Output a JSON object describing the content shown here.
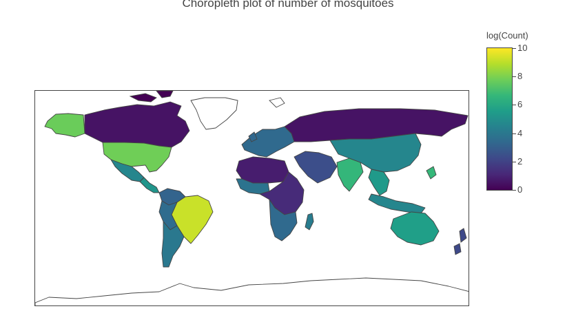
{
  "title": "Choropleth plot of number of mosquitoes",
  "colorbar": {
    "title": "log(Count)",
    "ticks": [
      "0",
      "2",
      "4",
      "6",
      "8",
      "10"
    ],
    "range": [
      0,
      10
    ],
    "colorscale": [
      "#440154",
      "#482878",
      "#3e4989",
      "#31688e",
      "#26828e",
      "#1f9e89",
      "#35b779",
      "#6ece58",
      "#b5de2b",
      "#fde725"
    ]
  },
  "regions": [
    {
      "name": "Alaska",
      "value": 7.7
    },
    {
      "name": "Canada",
      "value": 0.5
    },
    {
      "name": "Greenland",
      "value": null
    },
    {
      "name": "United States",
      "value": 7.8
    },
    {
      "name": "Mexico",
      "value": 4.6
    },
    {
      "name": "Central America",
      "value": 5.2
    },
    {
      "name": "Colombia / Venezuela",
      "value": 3.2
    },
    {
      "name": "Brazil",
      "value": 9.2
    },
    {
      "name": "Peru / Bolivia",
      "value": 3.5
    },
    {
      "name": "Argentina / Chile",
      "value": 4.0
    },
    {
      "name": "Europe",
      "value": 3.4
    },
    {
      "name": "Russia",
      "value": 0.5
    },
    {
      "name": "North Africa",
      "value": 0.8
    },
    {
      "name": "West Africa",
      "value": 3.8
    },
    {
      "name": "Central Africa",
      "value": 1.2
    },
    {
      "name": "Southern Africa",
      "value": 3.4
    },
    {
      "name": "Madagascar",
      "value": 4.2
    },
    {
      "name": "Middle East",
      "value": 2.4
    },
    {
      "name": "India",
      "value": 6.6
    },
    {
      "name": "China",
      "value": 4.6
    },
    {
      "name": "Southeast Asia",
      "value": 5.4
    },
    {
      "name": "Indonesia",
      "value": 4.6
    },
    {
      "name": "Australia",
      "value": 5.6
    },
    {
      "name": "Antarctica",
      "value": null
    }
  ]
}
